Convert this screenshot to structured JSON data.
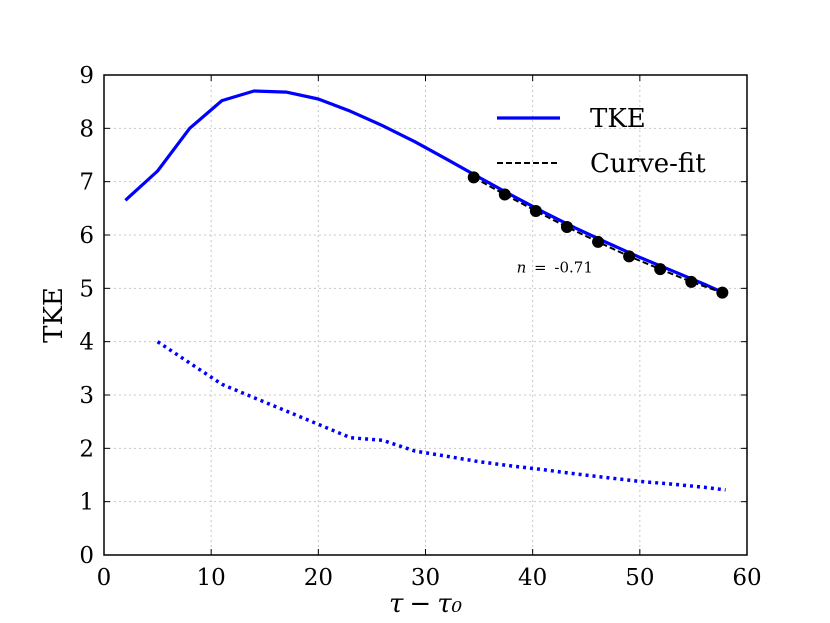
{
  "chart_data": {
    "type": "line",
    "title": "",
    "xlabel": "τ − τ₀",
    "ylabel": "TKE",
    "xlim": [
      0,
      60
    ],
    "ylim": [
      0,
      9
    ],
    "xticks": [
      0,
      10,
      20,
      30,
      40,
      50,
      60
    ],
    "yticks": [
      0,
      1,
      2,
      3,
      4,
      5,
      6,
      7,
      8,
      9
    ],
    "grid": true,
    "legend_position": "top-right",
    "series": [
      {
        "name": "TKE",
        "style": "solid",
        "color": "#0000ff",
        "in_legend": true,
        "x": [
          2,
          5,
          8,
          11,
          14,
          17,
          20,
          23,
          26,
          29,
          32,
          35,
          38,
          41,
          44,
          47,
          50,
          53,
          56,
          58
        ],
        "y": [
          6.65,
          7.2,
          8.0,
          8.52,
          8.7,
          8.68,
          8.55,
          8.32,
          8.05,
          7.75,
          7.42,
          7.08,
          6.75,
          6.43,
          6.13,
          5.85,
          5.58,
          5.33,
          5.08,
          4.9
        ]
      },
      {
        "name": "Curve-fit",
        "style": "dashed",
        "color": "#000000",
        "in_legend": true,
        "x": [
          34.5,
          37.4,
          40.3,
          43.2,
          46.1,
          49.0,
          51.9,
          54.8,
          57.7
        ],
        "y": [
          7.08,
          6.76,
          6.45,
          6.15,
          5.87,
          5.6,
          5.36,
          5.12,
          4.92
        ],
        "markers": true
      },
      {
        "name": "",
        "style": "dotted",
        "color": "#0000ff",
        "in_legend": false,
        "x": [
          5,
          8,
          11,
          14,
          17,
          20,
          23,
          26,
          29,
          32,
          35,
          38,
          41,
          44,
          47,
          50,
          53,
          56,
          58
        ],
        "y": [
          4.0,
          3.6,
          3.2,
          2.95,
          2.7,
          2.45,
          2.2,
          2.15,
          1.95,
          1.85,
          1.75,
          1.67,
          1.6,
          1.52,
          1.45,
          1.38,
          1.33,
          1.27,
          1.22
        ]
      }
    ],
    "annotations": [
      {
        "text_var": "n",
        "text_eq": "=",
        "text_val": "-0.71",
        "x": 38.5,
        "y": 5.3
      }
    ]
  }
}
